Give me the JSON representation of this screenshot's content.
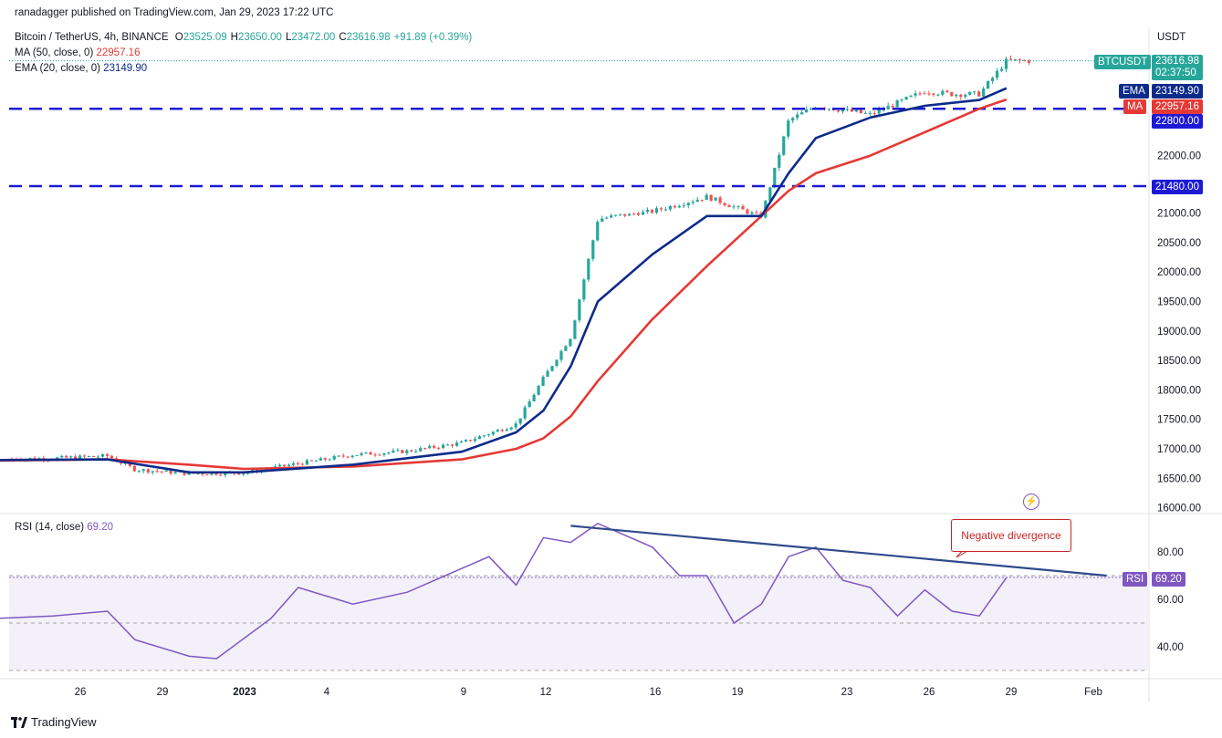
{
  "header": {
    "publisher": "ranadagger published on TradingView.com, Jan 29, 2023 17:22 UTC"
  },
  "legend": {
    "symbol": "Bitcoin / TetherUS, 4h, BINANCE",
    "ohlc": [
      {
        "k": "O",
        "v": "23525.09"
      },
      {
        "k": "H",
        "v": "23650.00"
      },
      {
        "k": "L",
        "v": "23472.00"
      },
      {
        "k": "C",
        "v": "23616.98"
      },
      {
        "k": "",
        "v": "+91.89 (+0.39%)"
      }
    ],
    "ma": {
      "label": "MA (50, close, 0)",
      "value": "22957.16"
    },
    "ema": {
      "label": "EMA (20, close, 0)",
      "value": "23149.90"
    },
    "rsi": {
      "label": "RSI (14, close)",
      "value": "69.20"
    }
  },
  "currency": "USDT",
  "colors": {
    "up": "#26a69a",
    "down": "#ef5350",
    "ema": "#0d2b8a",
    "ma": "#e53935",
    "rsi": "#7e57c2",
    "level": "#1d1ad6",
    "trend": "#2f4a8c",
    "ticker": "#26a69a"
  },
  "price_labels": {
    "ticker": "BTCUSDT",
    "price": "23616.98",
    "countdown": "02:37:50",
    "ema_tag": "EMA",
    "ema_value": "23149.90",
    "ma_tag": "MA",
    "ma_value": "22957.16",
    "level1": "22800.00",
    "level2": "21480.00",
    "rsi_tag": "RSI",
    "rsi_value": "69.20"
  },
  "annotation": "Negative divergence",
  "branding": "TradingView",
  "chart_data": {
    "type": "line",
    "title": "Bitcoin / TetherUS, 4h, BINANCE",
    "x_ticks": [
      "26",
      "29",
      "2023",
      "4",
      "9",
      "12",
      "16",
      "19",
      "23",
      "26",
      "29",
      "Feb"
    ],
    "y_ticks": [
      16000,
      16500,
      17000,
      17500,
      18000,
      18500,
      19000,
      19500,
      20000,
      20500,
      21000,
      22000
    ],
    "ylim": [
      15850,
      23950
    ],
    "levels": [
      22800,
      21480
    ],
    "series": [
      {
        "name": "Bitcoin / TetherUS",
        "x": [
          "Dec 23",
          "Dec 25",
          "Dec 27",
          "Dec 28",
          "Dec 30",
          "Jan 1",
          "Jan 3",
          "Jan 5",
          "Jan 7",
          "Jan 9",
          "Jan 11",
          "Jan 12",
          "Jan 13",
          "Jan 14",
          "Jan 16",
          "Jan 18",
          "Jan 20",
          "Jan 21",
          "Jan 22",
          "Jan 24",
          "Jan 26",
          "Jan 27",
          "Jan 28",
          "Jan 29"
        ],
        "values": [
          16830,
          16840,
          16880,
          16650,
          16580,
          16590,
          16750,
          16900,
          16960,
          17100,
          17420,
          18200,
          18900,
          20900,
          21050,
          21300,
          20950,
          22600,
          22850,
          22700,
          23100,
          23050,
          23050,
          23617
        ]
      },
      {
        "name": "EMA (20, close, 0)",
        "x": [
          "Dec 23",
          "Dec 27",
          "Dec 30",
          "Jan 1",
          "Jan 5",
          "Jan 9",
          "Jan 11",
          "Jan 12",
          "Jan 13",
          "Jan 14",
          "Jan 16",
          "Jan 18",
          "Jan 20",
          "Jan 21",
          "Jan 22",
          "Jan 24",
          "Jan 26",
          "Jan 28",
          "Jan 29"
        ],
        "values": [
          16810,
          16820,
          16600,
          16600,
          16730,
          16950,
          17280,
          17650,
          18400,
          19500,
          20300,
          20950,
          20950,
          21700,
          22300,
          22650,
          22850,
          22950,
          23150
        ]
      },
      {
        "name": "MA (50, close, 0)",
        "x": [
          "Dec 23",
          "Dec 27",
          "Dec 30",
          "Jan 1",
          "Jan 5",
          "Jan 9",
          "Jan 11",
          "Jan 12",
          "Jan 13",
          "Jan 14",
          "Jan 16",
          "Jan 18",
          "Jan 20",
          "Jan 21",
          "Jan 22",
          "Jan 24",
          "Jan 26",
          "Jan 28",
          "Jan 29"
        ],
        "values": [
          16800,
          16820,
          16730,
          16660,
          16700,
          16820,
          17000,
          17180,
          17550,
          18150,
          19200,
          20100,
          20950,
          21400,
          21700,
          22000,
          22400,
          22800,
          22957
        ]
      }
    ],
    "rsi": {
      "name": "RSI (14, close)",
      "y_ticks": [
        40,
        60,
        80
      ],
      "ylim": [
        28,
        96
      ],
      "bands": [
        30,
        50,
        70
      ],
      "x": [
        "Dec 23",
        "Dec 25",
        "Dec 27",
        "Dec 28",
        "Dec 30",
        "Dec 31",
        "Jan 2",
        "Jan 3",
        "Jan 5",
        "Jan 7",
        "Jan 9",
        "Jan 10",
        "Jan 11",
        "Jan 12",
        "Jan 13",
        "Jan 14",
        "Jan 16",
        "Jan 17",
        "Jan 18",
        "Jan 19",
        "Jan 20",
        "Jan 21",
        "Jan 22",
        "Jan 23",
        "Jan 24",
        "Jan 25",
        "Jan 26",
        "Jan 27",
        "Jan 28",
        "Jan 29"
      ],
      "values": [
        52,
        53,
        55,
        43,
        36,
        35,
        52,
        65,
        58,
        63,
        73,
        78,
        66,
        86,
        84,
        92,
        82,
        70,
        70,
        50,
        58,
        78,
        82,
        68,
        65,
        53,
        64,
        55,
        53,
        69.2
      ]
    },
    "annotations": [
      {
        "text": "Negative divergence",
        "from": {
          "x": "Jan 13",
          "rsi": 91
        },
        "to": {
          "x": "Feb 1",
          "rsi": 70
        }
      }
    ]
  }
}
